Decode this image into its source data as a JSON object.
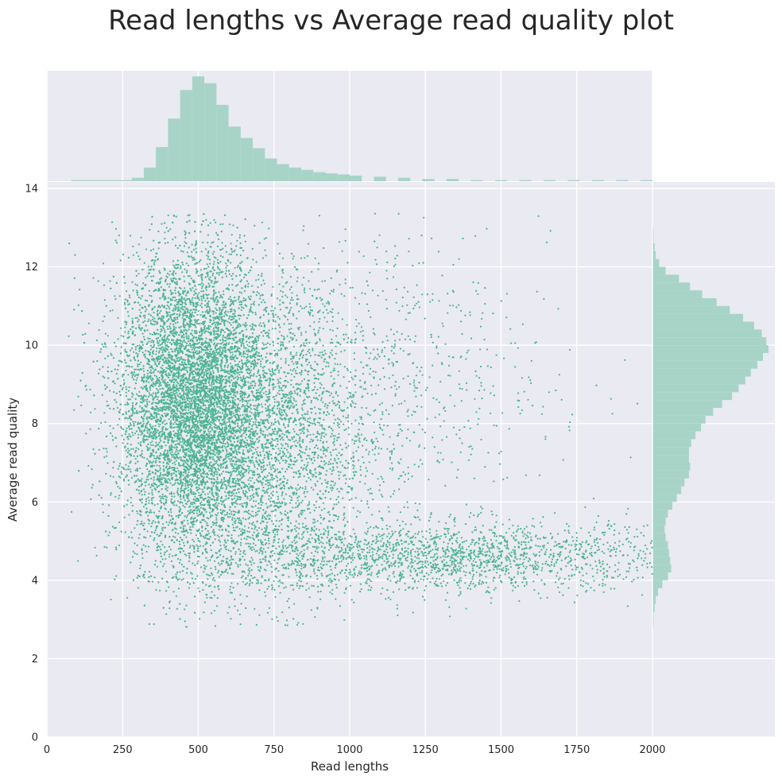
{
  "chart_data": {
    "type": "scatter",
    "title": "Read lengths vs Average read quality plot",
    "xlabel": "Read lengths",
    "ylabel": "Average read quality",
    "xlim": [
      0,
      2400
    ],
    "ylim": [
      0,
      14
    ],
    "x_ticks": [
      0,
      250,
      500,
      750,
      1000,
      1250,
      1500,
      1750,
      2000
    ],
    "y_ticks": [
      0,
      2,
      4,
      6,
      8,
      10,
      12,
      14
    ],
    "grid": true,
    "point_color": "#4cb391",
    "hist_color": "#a8d4c8",
    "background_color": "#eaeaf2",
    "x_range": [
      60,
      2000
    ],
    "y_range": [
      2.8,
      13.4
    ],
    "clusters": [
      {
        "cx": 480,
        "cy": 8.6,
        "sx": 120,
        "sy": 1.9,
        "share": 0.55
      },
      {
        "cx": 700,
        "cy": 7.5,
        "sx": 180,
        "sy": 2.0,
        "share": 0.22
      },
      {
        "cx": 1300,
        "cy": 4.6,
        "sx": 420,
        "sy": 0.45,
        "share": 0.15
      },
      {
        "cx": 950,
        "cy": 9.0,
        "sx": 350,
        "sy": 1.8,
        "share": 0.08
      }
    ],
    "length_histogram": {
      "bin_starts": [
        0,
        40,
        80,
        120,
        160,
        200,
        240,
        280,
        320,
        360,
        400,
        440,
        480,
        520,
        560,
        600,
        640,
        680,
        720,
        760,
        800,
        840,
        880,
        920,
        960,
        1000,
        1080,
        1160,
        1240,
        1320,
        1400,
        1480,
        1560,
        1640,
        1720,
        1800,
        1880,
        1960
      ],
      "bin_width": 40,
      "counts": [
        0,
        0,
        1,
        1,
        1,
        1,
        1,
        3,
        12,
        30,
        55,
        80,
        92,
        86,
        67,
        48,
        38,
        29,
        20,
        15,
        12,
        10,
        8,
        7,
        6,
        5,
        4,
        3,
        2,
        2,
        1,
        1,
        1,
        1,
        1,
        1,
        1,
        1
      ]
    },
    "quality_histogram": {
      "bin_starts": [
        2.8,
        3.0,
        3.2,
        3.4,
        3.6,
        3.8,
        4.0,
        4.2,
        4.4,
        4.6,
        4.8,
        5.0,
        5.2,
        5.4,
        5.6,
        5.8,
        6.0,
        6.2,
        6.4,
        6.6,
        6.8,
        7.0,
        7.2,
        7.4,
        7.6,
        7.8,
        8.0,
        8.2,
        8.4,
        8.6,
        8.8,
        9.0,
        9.2,
        9.4,
        9.6,
        9.8,
        10.0,
        10.2,
        10.4,
        10.6,
        10.8,
        11.0,
        11.2,
        11.4,
        11.6,
        11.8,
        12.0,
        12.2,
        12.4,
        12.6,
        12.8
      ],
      "bin_width": 0.2,
      "counts": [
        1,
        1,
        2,
        3,
        5,
        9,
        14,
        17,
        16,
        15,
        14,
        12,
        11,
        12,
        14,
        18,
        22,
        26,
        29,
        33,
        34,
        33,
        33,
        35,
        39,
        44,
        48,
        55,
        63,
        72,
        78,
        84,
        89,
        95,
        100,
        105,
        103,
        99,
        92,
        82,
        70,
        58,
        45,
        34,
        24,
        12,
        6,
        3,
        2,
        1,
        1
      ]
    }
  }
}
